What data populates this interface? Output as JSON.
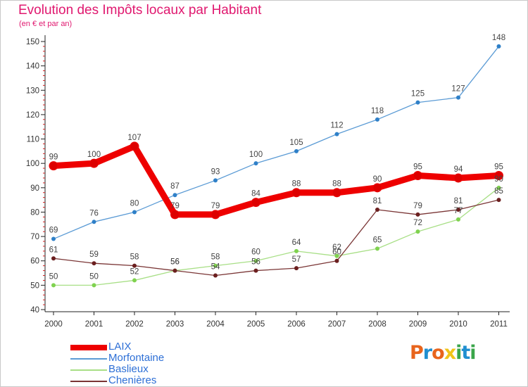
{
  "title": "Evolution des Impôts locaux par Habitant",
  "subtitle": "(en € et par an)",
  "logo": {
    "letters": [
      "P",
      "r",
      "o",
      "x",
      "i",
      "t",
      "i"
    ],
    "colors": [
      "#e8641c",
      "#1f8fd0",
      "#e8641c",
      "#f0c419",
      "#3aa54a",
      "#1f8fd0",
      "#3aa54a"
    ]
  },
  "chart_data": {
    "type": "line",
    "title": "Evolution des Impôts locaux par Habitant",
    "subtitle": "(en € et par an)",
    "xlabel": "",
    "ylabel": "",
    "ylim": [
      40,
      150
    ],
    "yticks": [
      40,
      50,
      60,
      70,
      80,
      90,
      100,
      110,
      120,
      130,
      140,
      150
    ],
    "grid": false,
    "legend": "bottom-left",
    "categories": [
      "2000",
      "2001",
      "2002",
      "2003",
      "2004",
      "2005",
      "2006",
      "2007",
      "2008",
      "2009",
      "2010",
      "2011"
    ],
    "series": [
      {
        "name": "Morfontaine",
        "color": "#5b9bd5",
        "marker": "#2f80c8",
        "width": "thin",
        "values": [
          69,
          76,
          80,
          87,
          93,
          100,
          105,
          112,
          118,
          125,
          127,
          148
        ],
        "labels": [
          "69",
          "76",
          "80",
          "87",
          "93",
          "100",
          "105",
          "112",
          "118",
          "125",
          "127",
          "148"
        ]
      },
      {
        "name": "Baslieux",
        "color": "#a8df86",
        "marker": "#7fd24f",
        "width": "thin",
        "values": [
          50,
          50,
          52,
          56,
          58,
          60,
          64,
          62,
          65,
          72,
          77,
          90
        ],
        "labels": [
          "50",
          "50",
          "52",
          "56",
          "58",
          "60",
          "64",
          "62",
          "65",
          "72",
          "77",
          "90"
        ]
      },
      {
        "name": "Chenières",
        "color": "#7a3535",
        "marker": "#6b1f1f",
        "width": "thin",
        "values": [
          61,
          59,
          58,
          56,
          54,
          56,
          57,
          60,
          81,
          79,
          81,
          85
        ],
        "labels": [
          "61",
          "59",
          "58",
          "56",
          "54",
          "56",
          "57",
          "60",
          "81",
          "79",
          "81",
          "85"
        ]
      },
      {
        "name": "LAIX",
        "color": "#ee0000",
        "marker": "#dd0000",
        "width": "thick",
        "values": [
          99,
          100,
          107,
          79,
          79,
          84,
          88,
          88,
          90,
          95,
          94,
          95
        ],
        "labels": [
          "99",
          "100",
          "107",
          "79",
          "79",
          "84",
          "88",
          "88",
          "90",
          "95",
          "94",
          "95"
        ]
      }
    ],
    "legend_order": [
      "LAIX",
      "Morfontaine",
      "Baslieux",
      "Chenières"
    ]
  }
}
